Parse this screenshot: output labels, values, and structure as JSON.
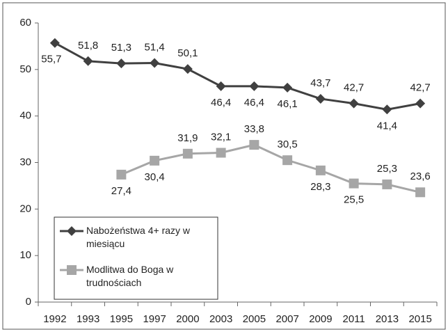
{
  "chart_data": {
    "type": "line",
    "categories": [
      "1992",
      "1993",
      "1995",
      "1997",
      "2000",
      "2003",
      "2005",
      "2007",
      "2009",
      "2011",
      "2013",
      "2015"
    ],
    "series": [
      {
        "name": "Nabożeństwa 4+ razy w miesiącu",
        "color": "#404040",
        "marker": "diamond",
        "values": [
          55.7,
          51.8,
          51.3,
          51.4,
          50.1,
          46.4,
          46.4,
          46.1,
          43.7,
          42.7,
          41.4,
          42.7
        ],
        "value_labels": [
          "55,7",
          "51,8",
          "51,3",
          "51,4",
          "50,1",
          "46,4",
          "46,4",
          "46,1",
          "43,7",
          "42,7",
          "41,4",
          "42,7"
        ]
      },
      {
        "name": "Modlitwa do Boga w trudnościach",
        "color": "#a6a6a6",
        "marker": "square",
        "values": [
          null,
          null,
          27.4,
          30.4,
          31.9,
          32.1,
          33.8,
          30.5,
          28.3,
          25.5,
          25.3,
          23.6
        ],
        "value_labels": [
          null,
          null,
          "27,4",
          "30,4",
          "31,9",
          "32,1",
          "33,8",
          "30,5",
          "28,3",
          "25,5",
          "25,3",
          "23,6"
        ]
      }
    ],
    "ylim": [
      0,
      60
    ],
    "yticks": [
      0,
      10,
      20,
      30,
      40,
      50,
      60
    ],
    "grid": false,
    "legend": "lower-left"
  }
}
